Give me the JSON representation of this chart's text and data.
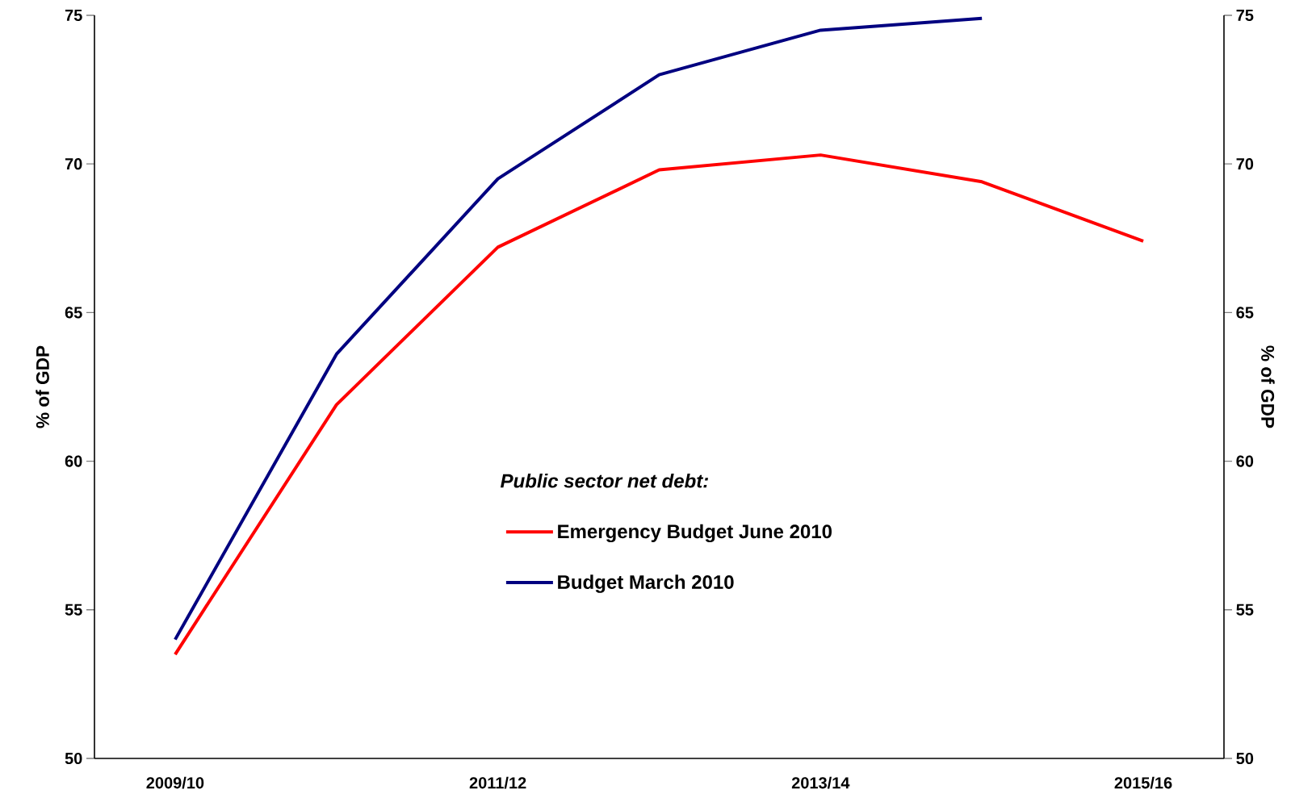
{
  "chart_data": {
    "type": "line",
    "ylabel": "% of GDP",
    "y2label": "% of GDP",
    "legend_title": "Public sector net debt:",
    "legend": "center",
    "categories": [
      "2009/10",
      null,
      "2011/12",
      null,
      "2013/14",
      null,
      "2015/16"
    ],
    "series": [
      {
        "name": "Emergency Budget June 2010",
        "color": "#ff0000",
        "values": [
          53.5,
          61.9,
          67.2,
          69.8,
          70.3,
          69.4,
          67.4
        ]
      },
      {
        "name": "Budget March 2010",
        "color": "#000080",
        "values": [
          54.0,
          63.6,
          69.5,
          73.0,
          74.5,
          74.9,
          null
        ]
      }
    ],
    "ylim": [
      50,
      75
    ],
    "yticks": [
      50,
      55,
      60,
      65,
      70,
      75
    ],
    "y2lim": [
      50,
      75
    ],
    "y2ticks": [
      50,
      55,
      60,
      65,
      70,
      75
    ],
    "grid": false,
    "marker": "none",
    "line_style": "solid"
  }
}
